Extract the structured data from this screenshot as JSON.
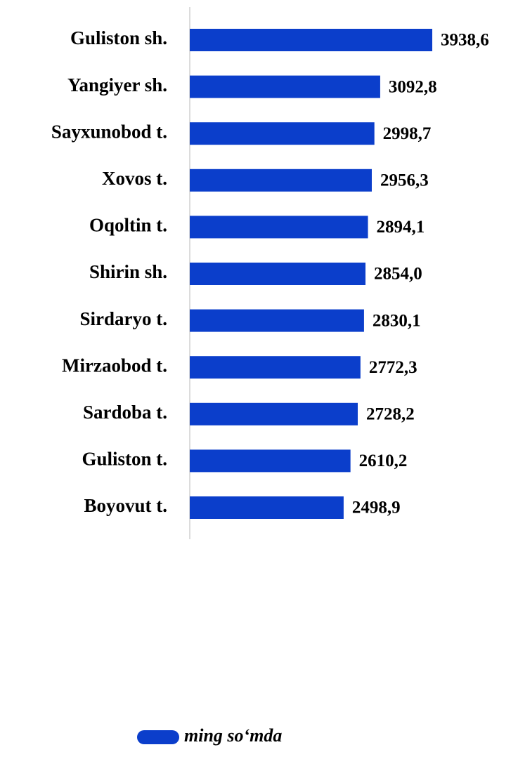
{
  "chart_data": {
    "type": "bar",
    "orientation": "horizontal",
    "categories": [
      "Guliston sh.",
      "Yangiyer sh.",
      "Sayxunobod t.",
      "Xovos t.",
      "Oqoltin t.",
      "Shirin sh.",
      "Sirdaryo t.",
      "Mirzaobod t.",
      "Sardoba t.",
      "Guliston t.",
      "Boyovut t."
    ],
    "series": [
      {
        "name": "ming so‘mda",
        "color": "#0b3ecb",
        "values": [
          3938.6,
          3092.8,
          2998.7,
          2956.3,
          2894.1,
          2854.0,
          2830.1,
          2772.3,
          2728.2,
          2610.2,
          2498.9
        ],
        "value_labels": [
          "3938,6",
          "3092,8",
          "2998,7",
          "2956,3",
          "2894,1",
          "2854,0",
          "2830,1",
          "2772,3",
          "2728,2",
          "2610,2",
          "2498,9"
        ]
      }
    ],
    "xlim": [
      0,
      5000
    ]
  }
}
